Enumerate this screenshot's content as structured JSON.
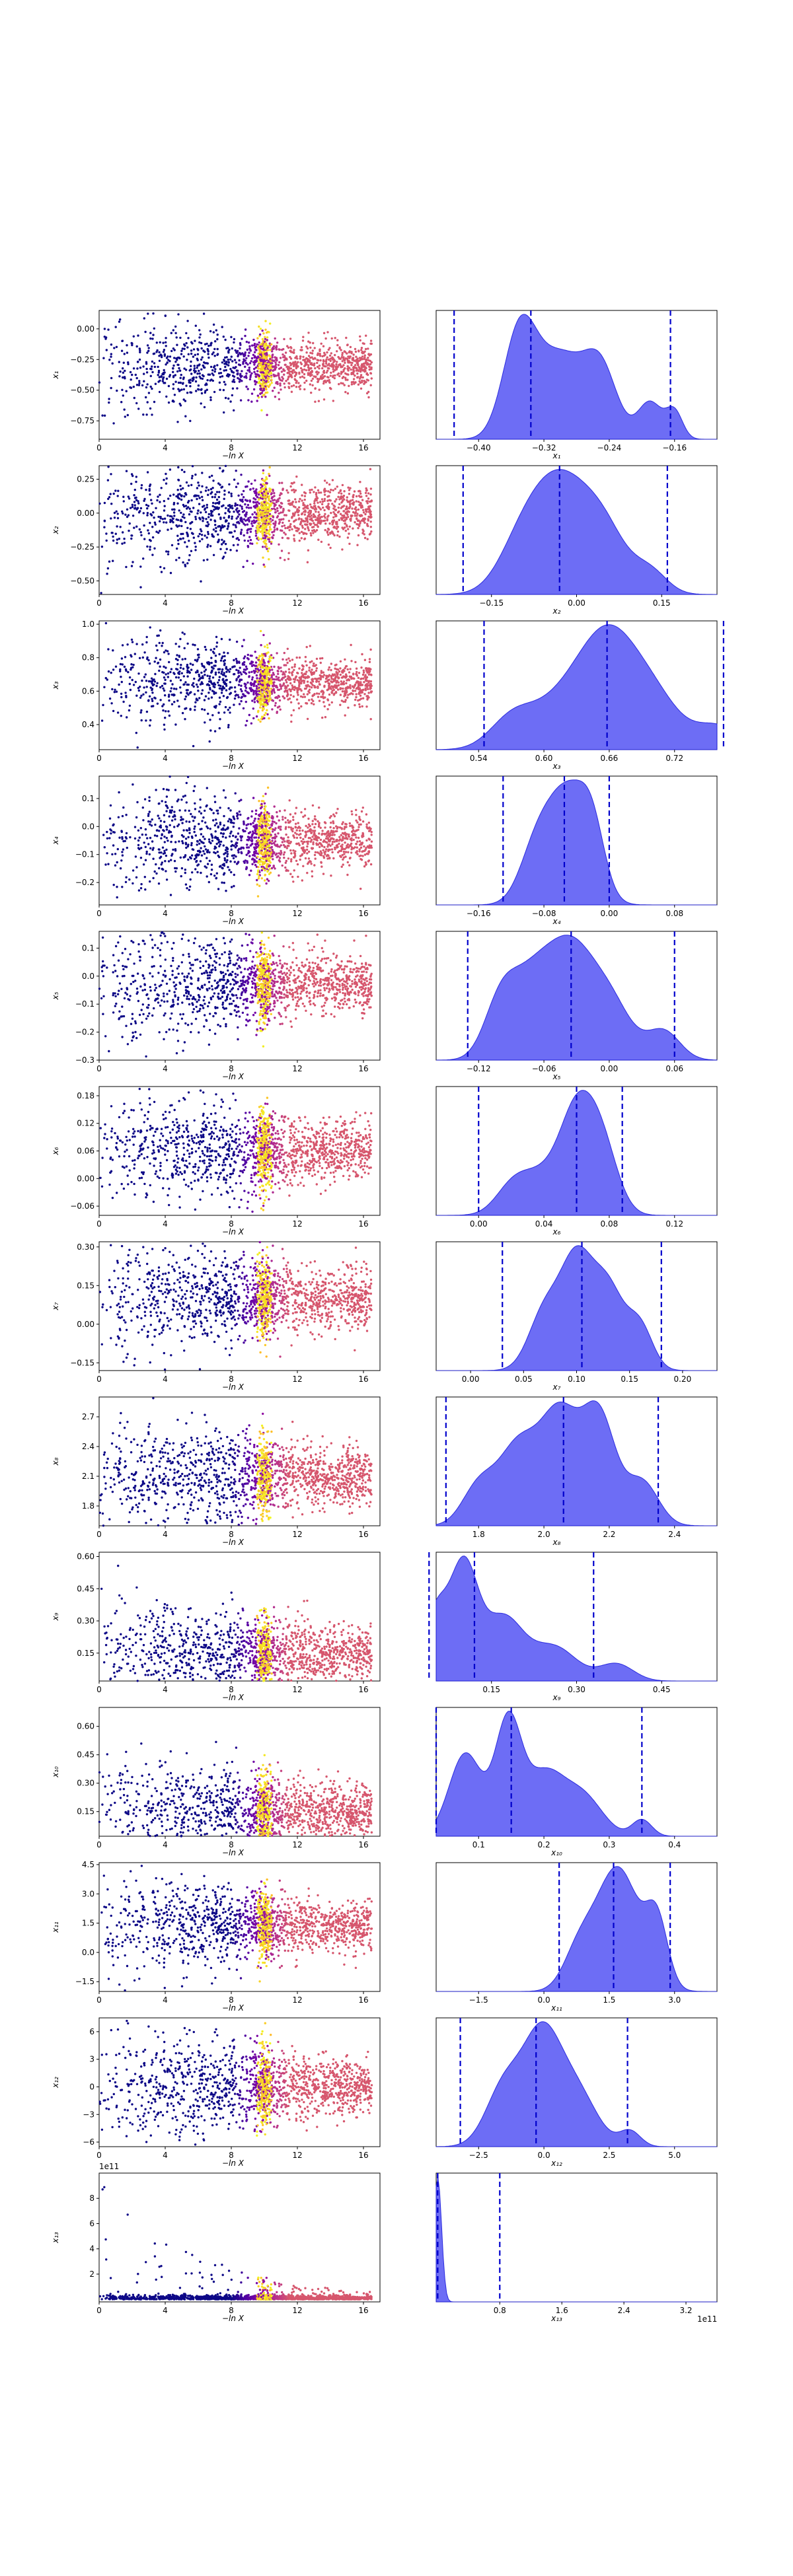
{
  "chart_data": [
    {
      "type": "scatter",
      "xlabel": "−ln X",
      "ylabel": "x₁",
      "xticks": [
        "0",
        "4",
        "8",
        "12",
        "16"
      ],
      "yticks": [
        "0.00",
        "−0.25",
        "−0.50",
        "−0.75"
      ],
      "ylim": [
        -0.9,
        0.15
      ],
      "center": -0.3,
      "spread": 0.14
    },
    {
      "type": "area",
      "xlabel": "x₁",
      "xticks": [
        "−0.40",
        "−0.32",
        "−0.24",
        "−0.16"
      ],
      "quantiles": [
        -0.43,
        -0.336,
        -0.165
      ],
      "peaks": [
        [
          -0.35,
          0.95,
          0.02
        ],
        [
          -0.3,
          0.78,
          0.03
        ],
        [
          -0.25,
          0.6,
          0.02
        ],
        [
          -0.19,
          0.35,
          0.015
        ],
        [
          -0.16,
          0.25,
          0.01
        ]
      ]
    },
    {
      "type": "scatter",
      "xlabel": "−ln X",
      "ylabel": "x₂",
      "xticks": [
        "0",
        "4",
        "8",
        "12",
        "16"
      ],
      "yticks": [
        "0.25",
        "0.00",
        "−0.25",
        "−0.50"
      ],
      "ylim": [
        -0.6,
        0.35
      ],
      "center": 0.0,
      "spread": 0.14
    },
    {
      "type": "area",
      "xlabel": "x₂",
      "xticks": [
        "−0.15",
        "0.00",
        "0.15"
      ],
      "quantiles": [
        -0.2,
        -0.03,
        0.16
      ],
      "peaks": [
        [
          -0.03,
          1.0,
          0.05
        ],
        [
          0.05,
          0.5,
          0.04
        ],
        [
          -0.1,
          0.35,
          0.04
        ],
        [
          0.13,
          0.2,
          0.03
        ]
      ]
    },
    {
      "type": "scatter",
      "xlabel": "−ln X",
      "ylabel": "x₃",
      "xticks": [
        "0",
        "4",
        "8",
        "12",
        "16"
      ],
      "yticks": [
        "1.0",
        "0.8",
        "0.6",
        "0.4"
      ],
      "ylim": [
        0.25,
        1.02
      ],
      "center": 0.65,
      "spread": 0.1
    },
    {
      "type": "area",
      "xlabel": "x₃",
      "xticks": [
        "0.54",
        "0.60",
        "0.66",
        "0.72"
      ],
      "quantiles": [
        0.545,
        0.658,
        0.765
      ],
      "peaks": [
        [
          0.66,
          1.0,
          0.025
        ],
        [
          0.7,
          0.55,
          0.025
        ],
        [
          0.62,
          0.55,
          0.03
        ],
        [
          0.57,
          0.3,
          0.02
        ],
        [
          0.76,
          0.25,
          0.02
        ]
      ]
    },
    {
      "type": "scatter",
      "xlabel": "−ln X",
      "ylabel": "x₄",
      "xticks": [
        "0",
        "4",
        "8",
        "12",
        "16"
      ],
      "yticks": [
        "0.1",
        "0.0",
        "−0.1",
        "−0.2"
      ],
      "ylim": [
        -0.28,
        0.18
      ],
      "center": -0.05,
      "spread": 0.07
    },
    {
      "type": "area",
      "xlabel": "x₄",
      "xticks": [
        "−0.16",
        "−0.08",
        "0.00",
        "0.08"
      ],
      "quantiles": [
        -0.13,
        -0.055,
        0.0
      ],
      "peaks": [
        [
          -0.05,
          1.0,
          0.025
        ],
        [
          -0.09,
          0.45,
          0.02
        ],
        [
          -0.02,
          0.45,
          0.015
        ]
      ]
    },
    {
      "type": "scatter",
      "xlabel": "−ln X",
      "ylabel": "x₅",
      "xticks": [
        "0",
        "4",
        "8",
        "12",
        "16"
      ],
      "yticks": [
        "0.1",
        "0.0",
        "−0.1",
        "−0.2",
        "−0.3"
      ],
      "ylim": [
        -0.3,
        0.16
      ],
      "center": -0.03,
      "spread": 0.07
    },
    {
      "type": "area",
      "xlabel": "x₅",
      "xticks": [
        "−0.12",
        "−0.06",
        "0.00",
        "0.06"
      ],
      "quantiles": [
        -0.13,
        -0.035,
        0.06
      ],
      "peaks": [
        [
          -0.035,
          1.0,
          0.02
        ],
        [
          -0.07,
          0.8,
          0.02
        ],
        [
          -0.1,
          0.55,
          0.015
        ],
        [
          0.0,
          0.6,
          0.02
        ],
        [
          0.05,
          0.3,
          0.015
        ]
      ]
    },
    {
      "type": "scatter",
      "xlabel": "−ln X",
      "ylabel": "x₆",
      "xticks": [
        "0",
        "4",
        "8",
        "12",
        "16"
      ],
      "yticks": [
        "0.18",
        "0.12",
        "0.06",
        "0.00",
        "−0.06"
      ],
      "ylim": [
        -0.08,
        0.2
      ],
      "center": 0.06,
      "spread": 0.045
    },
    {
      "type": "area",
      "xlabel": "x₆",
      "xticks": [
        "0.00",
        "0.04",
        "0.08",
        "0.12"
      ],
      "quantiles": [
        0.0,
        0.06,
        0.088
      ],
      "peaks": [
        [
          0.06,
          1.0,
          0.01
        ],
        [
          0.075,
          0.85,
          0.01
        ],
        [
          0.04,
          0.5,
          0.015
        ],
        [
          0.02,
          0.25,
          0.01
        ]
      ]
    },
    {
      "type": "scatter",
      "xlabel": "−ln X",
      "ylabel": "x₇",
      "xticks": [
        "0",
        "4",
        "8",
        "12",
        "16"
      ],
      "yticks": [
        "0.30",
        "0.15",
        "0.00",
        "−0.15"
      ],
      "ylim": [
        -0.18,
        0.32
      ],
      "center": 0.1,
      "spread": 0.08
    },
    {
      "type": "area",
      "xlabel": "x₇",
      "xticks": [
        "0.00",
        "0.05",
        "0.10",
        "0.15",
        "0.20"
      ],
      "quantiles": [
        0.03,
        0.105,
        0.18
      ],
      "peaks": [
        [
          0.1,
          1.0,
          0.015
        ],
        [
          0.13,
          0.75,
          0.015
        ],
        [
          0.07,
          0.55,
          0.015
        ],
        [
          0.16,
          0.4,
          0.012
        ]
      ]
    },
    {
      "type": "scatter",
      "xlabel": "−ln X",
      "ylabel": "x₈",
      "xticks": [
        "0",
        "4",
        "8",
        "12",
        "16"
      ],
      "yticks": [
        "2.7",
        "2.4",
        "2.1",
        "1.8"
      ],
      "ylim": [
        1.6,
        2.9
      ],
      "center": 2.1,
      "spread": 0.2
    },
    {
      "type": "area",
      "xlabel": "x₈",
      "xticks": [
        "1.8",
        "2.0",
        "2.2",
        "2.4"
      ],
      "quantiles": [
        1.7,
        2.06,
        2.35
      ],
      "peaks": [
        [
          2.05,
          1.0,
          0.06
        ],
        [
          2.17,
          0.95,
          0.05
        ],
        [
          1.92,
          0.7,
          0.06
        ],
        [
          1.8,
          0.35,
          0.05
        ],
        [
          2.3,
          0.4,
          0.05
        ]
      ]
    },
    {
      "type": "scatter",
      "xlabel": "−ln X",
      "ylabel": "x₉",
      "xticks": [
        "0",
        "4",
        "8",
        "12",
        "16"
      ],
      "yticks": [
        "0.60",
        "0.45",
        "0.30",
        "0.15"
      ],
      "ylim": [
        0.02,
        0.62
      ],
      "center": 0.14,
      "spread": 0.09
    },
    {
      "type": "area",
      "xlabel": "x₉",
      "xticks": [
        "0.15",
        "0.30",
        "0.45"
      ],
      "quantiles": [
        0.04,
        0.12,
        0.33
      ],
      "peaks": [
        [
          0.1,
          1.0,
          0.025
        ],
        [
          0.05,
          0.55,
          0.02
        ],
        [
          0.17,
          0.55,
          0.035
        ],
        [
          0.26,
          0.3,
          0.04
        ],
        [
          0.37,
          0.15,
          0.03
        ]
      ]
    },
    {
      "type": "scatter",
      "xlabel": "−ln X",
      "ylabel": "x₁₀",
      "xticks": [
        "0",
        "4",
        "8",
        "12",
        "16"
      ],
      "yticks": [
        "0.60",
        "0.45",
        "0.30",
        "0.15"
      ],
      "ylim": [
        0.02,
        0.7
      ],
      "center": 0.15,
      "spread": 0.1
    },
    {
      "type": "area",
      "xlabel": "x₁₀",
      "xticks": [
        "0.1",
        "0.2",
        "0.3",
        "0.4"
      ],
      "quantiles": [
        0.035,
        0.15,
        0.35
      ],
      "peaks": [
        [
          0.145,
          1.0,
          0.02
        ],
        [
          0.08,
          0.75,
          0.025
        ],
        [
          0.2,
          0.55,
          0.03
        ],
        [
          0.26,
          0.35,
          0.03
        ],
        [
          0.35,
          0.15,
          0.015
        ]
      ]
    },
    {
      "type": "scatter",
      "xlabel": "−ln X",
      "ylabel": "x₁₁",
      "xticks": [
        "0",
        "4",
        "8",
        "12",
        "16"
      ],
      "yticks": [
        "4.5",
        "3.0",
        "1.5",
        "0.0",
        "−1.5"
      ],
      "ylim": [
        -2.0,
        4.6
      ],
      "center": 1.4,
      "spread": 0.9
    },
    {
      "type": "area",
      "xlabel": "x₁₁",
      "xticks": [
        "−1.5",
        "0.0",
        "1.5",
        "3.0"
      ],
      "quantiles": [
        0.35,
        1.6,
        2.9
      ],
      "peaks": [
        [
          1.7,
          1.0,
          0.5
        ],
        [
          2.6,
          0.5,
          0.25
        ],
        [
          0.8,
          0.3,
          0.35
        ]
      ]
    },
    {
      "type": "scatter",
      "xlabel": "−ln X",
      "ylabel": "x₁₂",
      "xticks": [
        "0",
        "4",
        "8",
        "12",
        "16"
      ],
      "yticks": [
        "6",
        "3",
        "0",
        "−3",
        "−6"
      ],
      "ylim": [
        -6.5,
        7.5
      ],
      "center": 0.0,
      "spread": 2.2
    },
    {
      "type": "area",
      "xlabel": "x₁₂",
      "xticks": [
        "−2.5",
        "0.0",
        "2.5",
        "5.0"
      ],
      "quantiles": [
        -3.2,
        -0.3,
        3.2
      ],
      "peaks": [
        [
          -0.1,
          1.0,
          0.7
        ],
        [
          -1.5,
          0.6,
          0.7
        ],
        [
          1.2,
          0.55,
          0.8
        ],
        [
          3.3,
          0.15,
          0.4
        ]
      ]
    },
    {
      "type": "scatter",
      "xlabel": "−ln X",
      "ylabel": "x₁₃",
      "xticks": [
        "0",
        "4",
        "8",
        "12",
        "16"
      ],
      "yticks": [
        "8",
        "6",
        "4",
        "2"
      ],
      "ylim": [
        -0.2,
        10
      ],
      "center": 0.05,
      "spread": 0.05,
      "offset": "1e11"
    },
    {
      "type": "area",
      "xlabel": "x₁₃",
      "xticks": [
        "0.8",
        "1.6",
        "2.4",
        "3.2"
      ],
      "quantiles": [
        0.0,
        0.0,
        0.8
      ],
      "peaks": [
        [
          0.0,
          1.0,
          0.05
        ]
      ],
      "offset": "1e11"
    }
  ]
}
